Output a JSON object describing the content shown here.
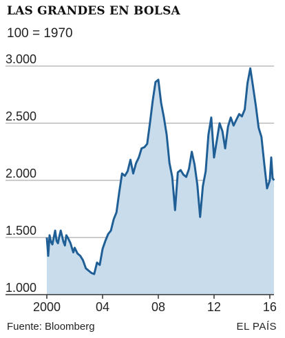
{
  "chart_data": {
    "type": "area",
    "title": "LAS GRANDES EN BOLSA",
    "subtitle": "100 = 1970",
    "xlabel": "",
    "ylabel": "",
    "xlim": [
      2000,
      2016.3
    ],
    "ylim": [
      1000,
      3000
    ],
    "y_ticks": [
      1000,
      1500,
      2000,
      2500,
      3000
    ],
    "y_tick_labels": [
      "1.000",
      "1.500",
      "2.000",
      "2.500",
      "3.000"
    ],
    "x_ticks": [
      2000,
      2004,
      2008,
      2012,
      2016
    ],
    "x_tick_labels": [
      "2000",
      "04",
      "08",
      "12",
      "16"
    ],
    "grid": true,
    "line_color": "#1f5f96",
    "fill_color": "#c9dcec",
    "series": [
      {
        "x": [
          2000,
          2000.1,
          2000.2,
          2000.3,
          2000.4,
          2000.5,
          2000.6,
          2000.7,
          2000.8,
          2000.9,
          2001,
          2001.2,
          2001.3,
          2001.4,
          2001.5,
          2001.7,
          2001.8,
          2001.9,
          2002,
          2002.2,
          2002.4,
          2002.6,
          2002.8,
          2003,
          2003.2,
          2003.4,
          2003.6,
          2003.8,
          2004,
          2004.2,
          2004.4,
          2004.6,
          2004.8,
          2005,
          2005.2,
          2005.4,
          2005.6,
          2005.8,
          2006,
          2006.2,
          2006.4,
          2006.6,
          2006.8,
          2007,
          2007.2,
          2007.4,
          2007.6,
          2007.8,
          2008,
          2008.2,
          2008.4,
          2008.6,
          2008.8,
          2009,
          2009.2,
          2009.4,
          2009.6,
          2009.8,
          2010,
          2010.2,
          2010.4,
          2010.6,
          2010.8,
          2011,
          2011.2,
          2011.4,
          2011.6,
          2011.8,
          2012,
          2012.2,
          2012.4,
          2012.6,
          2012.8,
          2013,
          2013.2,
          2013.4,
          2013.6,
          2013.8,
          2014,
          2014.2,
          2014.4,
          2014.6,
          2014.8,
          2015,
          2015.2,
          2015.4,
          2015.6,
          2015.8,
          2016,
          2016.1,
          2016.2,
          2016.3
        ],
        "values": [
          1500,
          1340,
          1520,
          1460,
          1440,
          1500,
          1560,
          1470,
          1450,
          1510,
          1560,
          1460,
          1430,
          1520,
          1500,
          1450,
          1410,
          1370,
          1410,
          1360,
          1340,
          1300,
          1230,
          1210,
          1190,
          1180,
          1280,
          1260,
          1400,
          1470,
          1530,
          1560,
          1660,
          1720,
          1900,
          2060,
          2040,
          2080,
          2180,
          2060,
          2150,
          2200,
          2280,
          2290,
          2320,
          2500,
          2700,
          2860,
          2880,
          2680,
          2550,
          2400,
          2150,
          2030,
          1740,
          2070,
          2090,
          2050,
          2030,
          2100,
          2250,
          2140,
          1960,
          1680,
          1950,
          2080,
          2400,
          2550,
          2200,
          2350,
          2500,
          2430,
          2280,
          2470,
          2550,
          2480,
          2530,
          2580,
          2560,
          2620,
          2850,
          2980,
          2820,
          2650,
          2460,
          2380,
          2150,
          1930,
          2000,
          2200,
          2020,
          2000
        ]
      }
    ]
  },
  "source": "Fuente: Bloomberg",
  "brand": "EL PAÍS"
}
